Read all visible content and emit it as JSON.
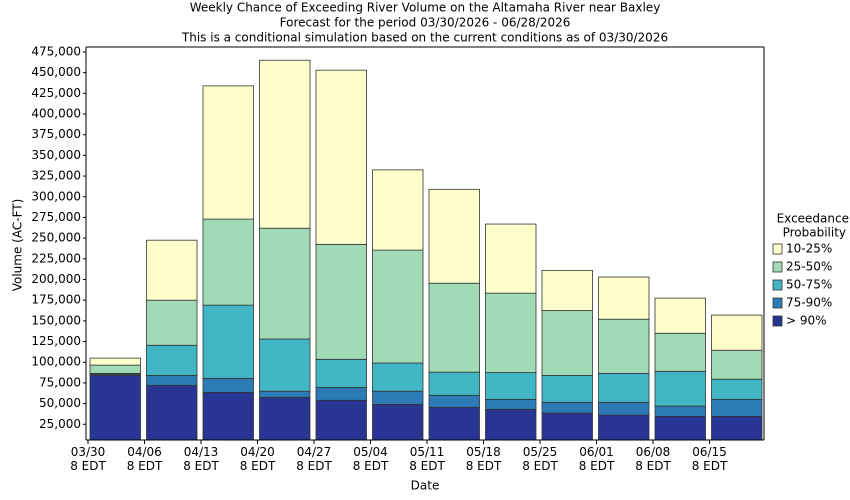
{
  "chart_data": {
    "type": "stacked_bar",
    "title": [
      "Weekly Chance of Exceeding River Volume on the Altamaha River near Baxley",
      "Forecast for the period 03/30/2026 - 06/28/2026",
      "This is a conditional simulation based on the current conditions as of 03/30/2026"
    ],
    "x_label": "Date",
    "y_label": "Volume (AC-FT)",
    "legend_title": [
      "Exceedance",
      "Probability"
    ],
    "categories": [
      "03/30 8 EDT",
      "04/06 8 EDT",
      "04/13 8 EDT",
      "04/20 8 EDT",
      "04/27 8 EDT",
      "05/04 8 EDT",
      "05/11 8 EDT",
      "05/18 8 EDT",
      "05/25 8 EDT",
      "06/01 8 EDT",
      "06/08 8 EDT",
      "06/15 8 EDT"
    ],
    "series": [
      {
        "name": "> 90%",
        "color": "#283593",
        "values": [
          78000,
          66000,
          57500,
          51500,
          48000,
          43000,
          39500,
          37000,
          32500,
          30000,
          28500,
          28500
        ]
      },
      {
        "name": "75-90%",
        "color": "#2c7bb6",
        "values": [
          1500,
          12000,
          17000,
          7500,
          15500,
          16000,
          14500,
          12000,
          13000,
          15500,
          12500,
          20500
        ]
      },
      {
        "name": "50-75%",
        "color": "#41b6c4",
        "values": [
          1000,
          36500,
          88500,
          63000,
          34000,
          34000,
          28000,
          32500,
          32500,
          35000,
          42000,
          24500
        ]
      },
      {
        "name": "25-50%",
        "color": "#a1dab4",
        "values": [
          10000,
          54500,
          104000,
          134000,
          139000,
          136500,
          107500,
          96000,
          78500,
          65500,
          46000,
          35000
        ]
      },
      {
        "name": "10-25%",
        "color": "#ffffcc",
        "values": [
          8500,
          72500,
          161000,
          203000,
          210500,
          97000,
          113500,
          83500,
          48500,
          51000,
          42500,
          42500
        ]
      }
    ],
    "ylim": [
      6000,
      481000
    ],
    "yticks": [
      {
        "value": 25000,
        "label": "25,000"
      },
      {
        "value": 50000,
        "label": "50,000"
      },
      {
        "value": 75000,
        "label": "75,000"
      },
      {
        "value": 100000,
        "label": "100,000"
      },
      {
        "value": 125000,
        "label": "125,000"
      },
      {
        "value": 150000,
        "label": "150,000"
      },
      {
        "value": 175000,
        "label": "175,000"
      },
      {
        "value": 200000,
        "label": "200,000"
      },
      {
        "value": 225000,
        "label": "225,000"
      },
      {
        "value": 250000,
        "label": "250,000"
      },
      {
        "value": 275000,
        "label": "275,000"
      },
      {
        "value": 300000,
        "label": "300,000"
      },
      {
        "value": 325000,
        "label": "325,000"
      },
      {
        "value": 350000,
        "label": "350,000"
      },
      {
        "value": 375000,
        "label": "375,000"
      },
      {
        "value": 400000,
        "label": "400,000"
      },
      {
        "value": 425000,
        "label": "425,000"
      },
      {
        "value": 450000,
        "label": "450,000"
      },
      {
        "value": 475000,
        "label": "475,000"
      }
    ],
    "grid": false
  }
}
